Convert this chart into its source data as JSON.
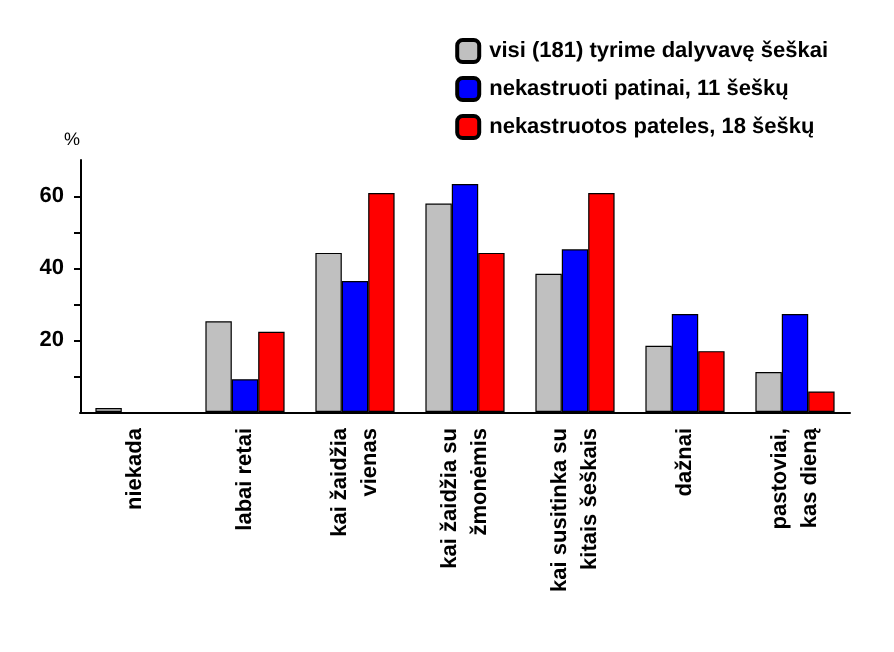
{
  "chart_data": {
    "type": "bar",
    "ylabel": "%",
    "categories": [
      "niekada",
      "labai retai",
      "kai žaidžia\nvienas",
      "kai žaidžia su\nžmonėmis",
      "kai susitinka su\nkitais šeškais",
      "dažnai",
      "pastoviai,\nkas dieną"
    ],
    "series": [
      {
        "name": "visi (181) tyrime dalyvavę šeškai",
        "color": "#c0c0c0",
        "values": [
          1.1,
          25.2,
          44.2,
          57.9,
          38.4,
          18.4,
          11.1
        ]
      },
      {
        "name": "nekastruoti patinai, 11 šeškų",
        "color": "#0000ff",
        "values": [
          null,
          9.1,
          36.4,
          63.3,
          45.2,
          27.2,
          27.2
        ]
      },
      {
        "name": "nekastruotos pateles, 18 šeškų",
        "color": "#ff0000",
        "values": [
          null,
          22.3,
          60.8,
          44.2,
          60.8,
          16.9,
          5.7
        ]
      }
    ],
    "ylim": [
      0,
      70
    ],
    "yticks": [
      {
        "value": 10,
        "label": null
      },
      20,
      {
        "value": 30,
        "label": null
      },
      40,
      {
        "value": 50,
        "label": null
      },
      60
    ],
    "grid": false,
    "legend": "top right"
  }
}
